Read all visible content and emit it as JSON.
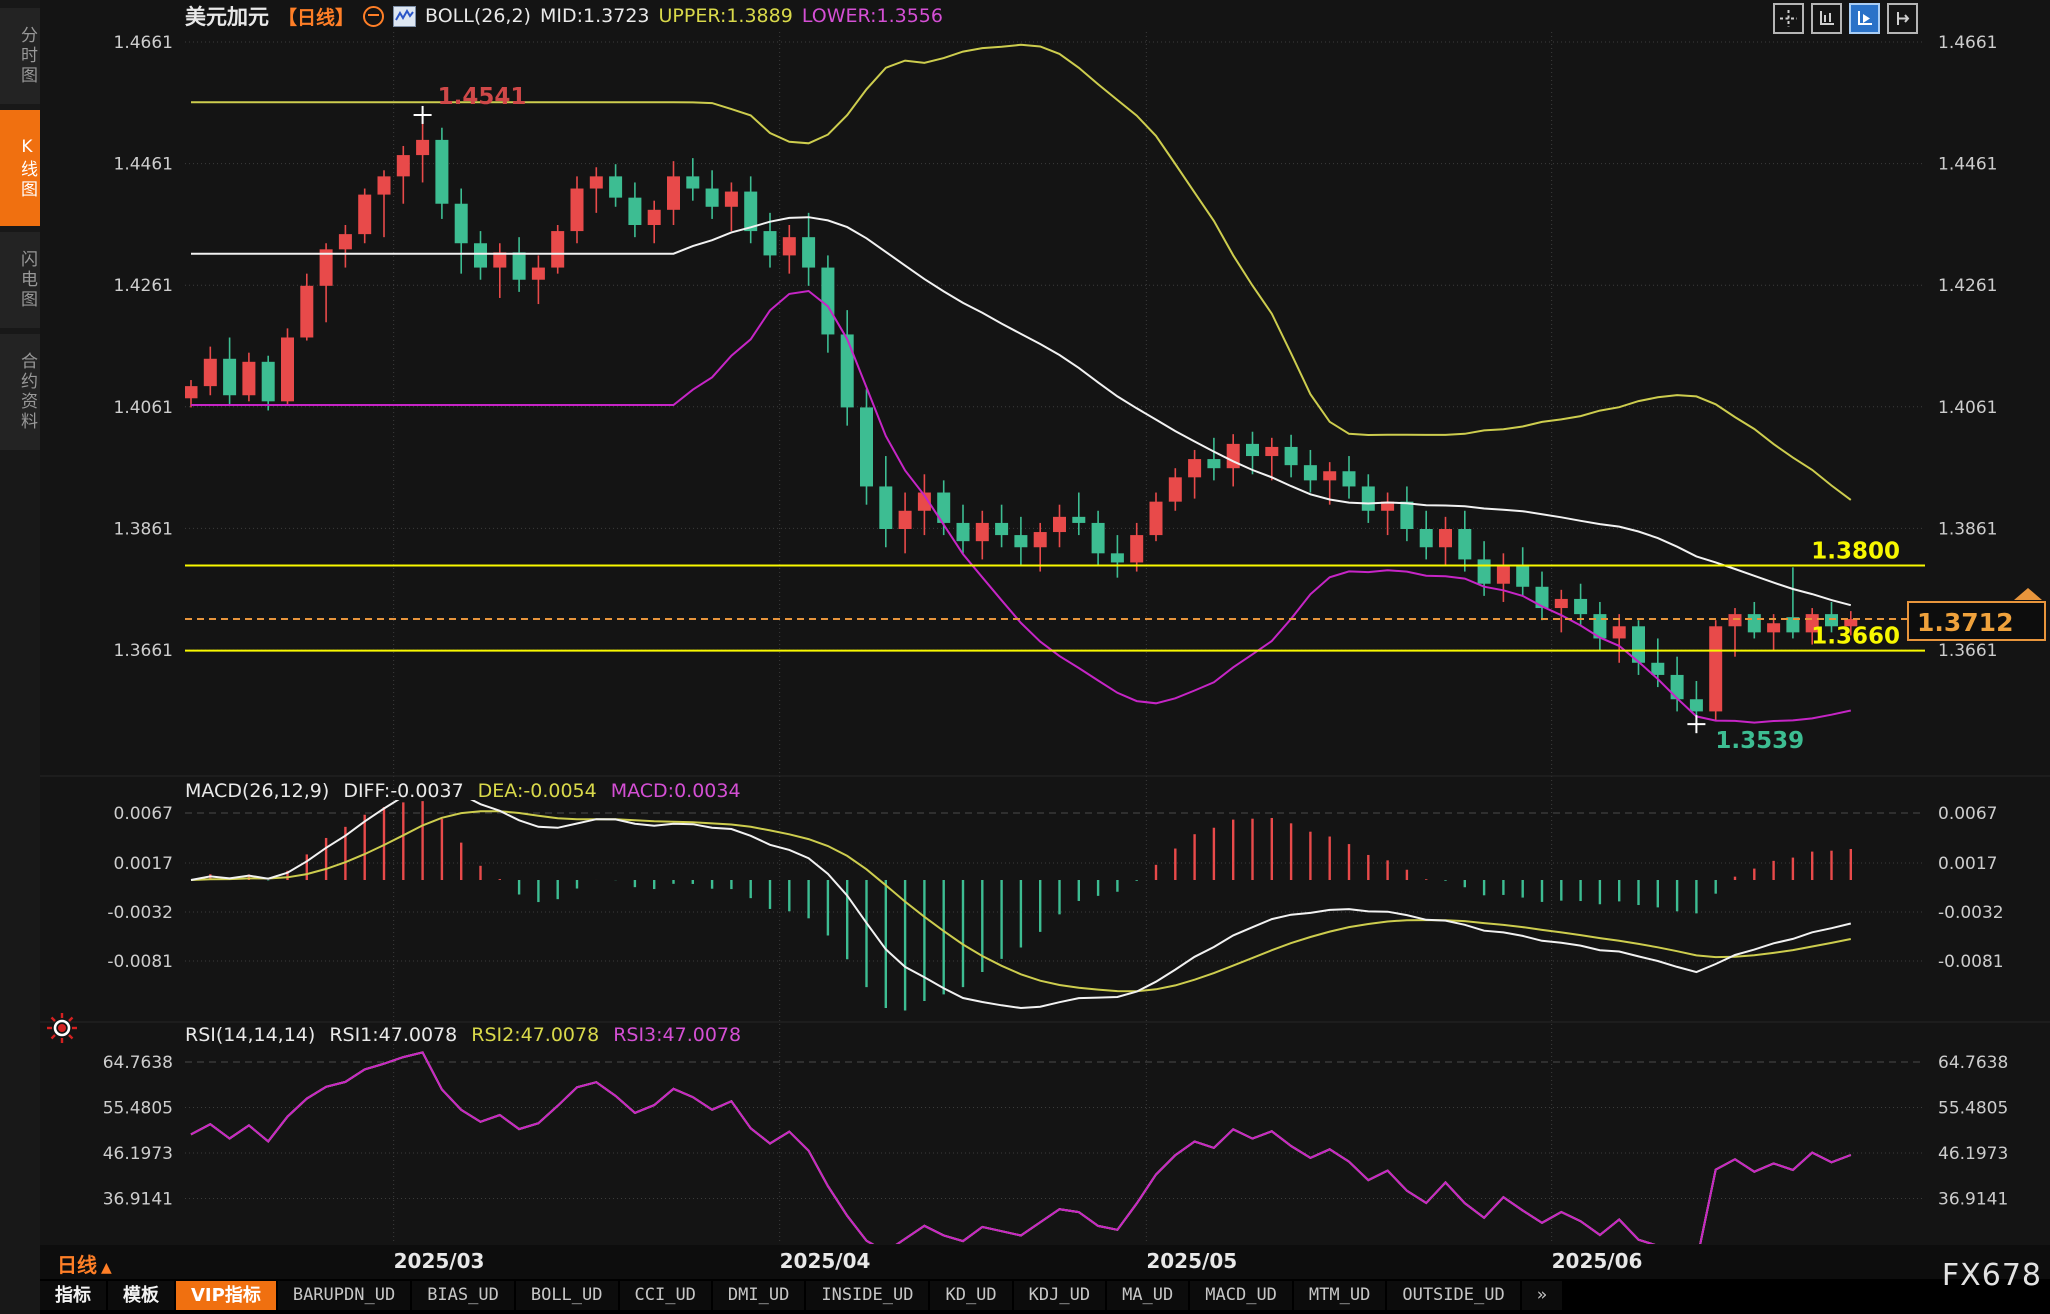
{
  "colors": {
    "up": "#e84a4a",
    "down": "#3dbd92",
    "boll_upper": "#cdcd4e",
    "boll_mid": "#f2f2f2",
    "boll_lower": "#c625c6",
    "macd_diff": "#f2f2f2",
    "macd_dea": "#cdcd4e",
    "rsi_line": "#c625c6",
    "yellow_line": "#f8f800",
    "orange_accent": "#ff7f27",
    "dashed_price": "#e8953c",
    "grid": "#3c3c3c",
    "axis_text": "#cdcdcd",
    "active_tab_bg": "#f07010",
    "active_btn_blue": "#2a72c8",
    "high_label": "#cf4848",
    "low_label": "#3dbd92"
  },
  "icons": {
    "sidebar_burst": "settings-burst-icon",
    "header": [
      "remove-circle-icon",
      "mini-candle-chart-icon"
    ],
    "top_buttons": [
      "crosshair-icon",
      "axis-scale-icon",
      "autoscroll-icon",
      "pan-right-icon"
    ]
  },
  "sidebar": {
    "items": [
      {
        "label": "分时图",
        "active": false
      },
      {
        "label": "K线图",
        "active": true
      },
      {
        "label": "闪电图",
        "active": false
      },
      {
        "label": "合约资料",
        "active": false
      }
    ]
  },
  "header": {
    "symbol": "美元加元",
    "period_tag": "【日线】",
    "boll_title": "BOLL(26,2)",
    "mid_label": "MID:1.3723",
    "upper_label": "UPPER:1.3889",
    "lower_label": "LOWER:1.3556"
  },
  "macd_pane": {
    "title": "MACD(26,12,9)",
    "diff_label": "DIFF:-0.0037",
    "dea_label": "DEA:-0.0054",
    "macd_label": "MACD:0.0034",
    "ticks": [
      {
        "label": "0.0067",
        "value": 0.0067
      },
      {
        "label": "0.0017",
        "value": 0.0017
      },
      {
        "label": "-0.0032",
        "value": -0.0032
      },
      {
        "label": "-0.0081",
        "value": -0.0081
      }
    ]
  },
  "rsi_pane": {
    "title": "RSI(14,14,14)",
    "rsi1_label": "RSI1:47.0078",
    "rsi2_label": "RSI2:47.0078",
    "rsi3_label": "RSI3:47.0078",
    "ticks": [
      {
        "label": "64.7638",
        "value": 64.7638
      },
      {
        "label": "55.4805",
        "value": 55.4805
      },
      {
        "label": "46.1973",
        "value": 46.1973
      },
      {
        "label": "36.9141",
        "value": 36.9141
      }
    ]
  },
  "bottom": {
    "period_label": "日线",
    "period_arrow": "▲",
    "watermark": "FX678",
    "tabs": [
      {
        "label": "指标",
        "cn": true,
        "active": false
      },
      {
        "label": "模板",
        "cn": true,
        "active": false
      },
      {
        "label": "VIP指标",
        "cn": true,
        "active": true
      },
      {
        "label": "BARUPDN_UD"
      },
      {
        "label": "BIAS_UD"
      },
      {
        "label": "BOLL_UD"
      },
      {
        "label": "CCI_UD"
      },
      {
        "label": "DMI_UD"
      },
      {
        "label": "INSIDE_UD"
      },
      {
        "label": "KD_UD"
      },
      {
        "label": "KDJ_UD"
      },
      {
        "label": "MA_UD"
      },
      {
        "label": "MACD_UD"
      },
      {
        "label": "MTM_UD"
      },
      {
        "label": "OUTSIDE_UD"
      },
      {
        "label": "»"
      }
    ]
  },
  "chart_data": {
    "type": "candlestick",
    "symbol": "美元加元 (USD/CAD)",
    "timeframe": "日线 (daily)",
    "price_ticks": [
      {
        "label": "1.4661",
        "value": 1.4661
      },
      {
        "label": "1.4461",
        "value": 1.4461
      },
      {
        "label": "1.4261",
        "value": 1.4261
      },
      {
        "label": "1.4061",
        "value": 1.4061
      },
      {
        "label": "1.3861",
        "value": 1.3861
      },
      {
        "label": "1.3661",
        "value": 1.3661
      }
    ],
    "hlines": [
      {
        "label": "1.3800",
        "value": 1.38
      },
      {
        "label": "1.3660",
        "value": 1.366
      }
    ],
    "current_price": {
      "label": "1.3712",
      "value": 1.3712
    },
    "high_annotation": {
      "label": "1.4541",
      "value": 1.4541,
      "index": 12
    },
    "low_annotation": {
      "label": "1.3539",
      "value": 1.3539,
      "index": 78
    },
    "months": [
      {
        "label": "2025/03",
        "boundary_index": 10.5
      },
      {
        "label": "2025/04",
        "boundary_index": 30.5
      },
      {
        "label": "2025/05",
        "boundary_index": 49.5
      },
      {
        "label": "2025/06",
        "boundary_index": 70.5
      }
    ],
    "indicators": {
      "boll": {
        "period": 26,
        "dev": 2,
        "mid": 1.3723,
        "upper": 1.3889,
        "lower": 1.3556
      },
      "macd": {
        "fast": 12,
        "slow": 26,
        "signal": 9,
        "diff": -0.0037,
        "dea": -0.0054,
        "macd": 0.0034
      },
      "rsi": {
        "periods": [
          14,
          14,
          14
        ],
        "values": [
          47.0078,
          47.0078,
          47.0078
        ]
      }
    },
    "candles": [
      [
        1.4075,
        1.4105,
        1.406,
        1.4095
      ],
      [
        1.4095,
        1.416,
        1.408,
        1.414
      ],
      [
        1.414,
        1.4175,
        1.4065,
        1.408
      ],
      [
        1.408,
        1.415,
        1.407,
        1.4135
      ],
      [
        1.4135,
        1.4145,
        1.4055,
        1.407
      ],
      [
        1.407,
        1.419,
        1.4065,
        1.4175
      ],
      [
        1.4175,
        1.428,
        1.417,
        1.426
      ],
      [
        1.426,
        1.433,
        1.42,
        1.432
      ],
      [
        1.432,
        1.436,
        1.429,
        1.4345
      ],
      [
        1.4345,
        1.442,
        1.433,
        1.441
      ],
      [
        1.441,
        1.445,
        1.434,
        1.444
      ],
      [
        1.444,
        1.449,
        1.4395,
        1.4475
      ],
      [
        1.4475,
        1.4541,
        1.443,
        1.45
      ],
      [
        1.45,
        1.452,
        1.437,
        1.4395
      ],
      [
        1.4395,
        1.442,
        1.428,
        1.433
      ],
      [
        1.433,
        1.435,
        1.427,
        1.429
      ],
      [
        1.429,
        1.433,
        1.424,
        1.4315
      ],
      [
        1.4315,
        1.434,
        1.425,
        1.427
      ],
      [
        1.427,
        1.431,
        1.423,
        1.429
      ],
      [
        1.429,
        1.436,
        1.428,
        1.435
      ],
      [
        1.435,
        1.444,
        1.433,
        1.442
      ],
      [
        1.442,
        1.4455,
        1.438,
        1.444
      ],
      [
        1.444,
        1.446,
        1.439,
        1.4405
      ],
      [
        1.4405,
        1.443,
        1.434,
        1.436
      ],
      [
        1.436,
        1.44,
        1.433,
        1.4385
      ],
      [
        1.4385,
        1.4465,
        1.436,
        1.444
      ],
      [
        1.444,
        1.447,
        1.44,
        1.442
      ],
      [
        1.442,
        1.445,
        1.437,
        1.439
      ],
      [
        1.439,
        1.443,
        1.435,
        1.4415
      ],
      [
        1.4415,
        1.444,
        1.433,
        1.435
      ],
      [
        1.435,
        1.438,
        1.429,
        1.431
      ],
      [
        1.431,
        1.436,
        1.428,
        1.434
      ],
      [
        1.434,
        1.438,
        1.426,
        1.429
      ],
      [
        1.429,
        1.431,
        1.415,
        1.418
      ],
      [
        1.418,
        1.422,
        1.403,
        1.406
      ],
      [
        1.406,
        1.409,
        1.39,
        1.393
      ],
      [
        1.393,
        1.398,
        1.383,
        1.386
      ],
      [
        1.386,
        1.392,
        1.382,
        1.389
      ],
      [
        1.389,
        1.395,
        1.385,
        1.392
      ],
      [
        1.392,
        1.394,
        1.385,
        1.387
      ],
      [
        1.387,
        1.39,
        1.382,
        1.384
      ],
      [
        1.384,
        1.389,
        1.381,
        1.387
      ],
      [
        1.387,
        1.39,
        1.383,
        1.385
      ],
      [
        1.385,
        1.388,
        1.38,
        1.383
      ],
      [
        1.383,
        1.387,
        1.379,
        1.3855
      ],
      [
        1.3855,
        1.39,
        1.383,
        1.388
      ],
      [
        1.388,
        1.392,
        1.385,
        1.387
      ],
      [
        1.387,
        1.389,
        1.38,
        1.382
      ],
      [
        1.382,
        1.385,
        1.378,
        1.3805
      ],
      [
        1.3805,
        1.387,
        1.379,
        1.385
      ],
      [
        1.385,
        1.392,
        1.384,
        1.3905
      ],
      [
        1.3905,
        1.396,
        1.389,
        1.3945
      ],
      [
        1.3945,
        1.399,
        1.391,
        1.3975
      ],
      [
        1.3975,
        1.401,
        1.394,
        1.396
      ],
      [
        1.396,
        1.4016,
        1.393,
        1.4
      ],
      [
        1.4,
        1.402,
        1.395,
        1.398
      ],
      [
        1.398,
        1.401,
        1.394,
        1.3995
      ],
      [
        1.3995,
        1.4015,
        1.3945,
        1.3965
      ],
      [
        1.3965,
        1.399,
        1.392,
        1.394
      ],
      [
        1.394,
        1.397,
        1.39,
        1.3955
      ],
      [
        1.3955,
        1.398,
        1.391,
        1.393
      ],
      [
        1.393,
        1.395,
        1.387,
        1.389
      ],
      [
        1.389,
        1.392,
        1.385,
        1.3905
      ],
      [
        1.3905,
        1.393,
        1.384,
        1.386
      ],
      [
        1.386,
        1.389,
        1.381,
        1.383
      ],
      [
        1.383,
        1.388,
        1.38,
        1.386
      ],
      [
        1.386,
        1.389,
        1.379,
        1.381
      ],
      [
        1.381,
        1.384,
        1.375,
        1.377
      ],
      [
        1.377,
        1.382,
        1.374,
        1.38
      ],
      [
        1.38,
        1.383,
        1.375,
        1.3765
      ],
      [
        1.3765,
        1.379,
        1.371,
        1.373
      ],
      [
        1.373,
        1.376,
        1.369,
        1.3745
      ],
      [
        1.3745,
        1.377,
        1.37,
        1.372
      ],
      [
        1.372,
        1.374,
        1.366,
        1.368
      ],
      [
        1.368,
        1.372,
        1.364,
        1.37
      ],
      [
        1.37,
        1.371,
        1.362,
        1.364
      ],
      [
        1.364,
        1.368,
        1.36,
        1.362
      ],
      [
        1.362,
        1.365,
        1.356,
        1.358
      ],
      [
        1.358,
        1.361,
        1.3539,
        1.356
      ],
      [
        1.356,
        1.371,
        1.3545,
        1.37
      ],
      [
        1.37,
        1.373,
        1.365,
        1.372
      ],
      [
        1.372,
        1.374,
        1.368,
        1.369
      ],
      [
        1.369,
        1.372,
        1.366,
        1.3705
      ],
      [
        1.3715,
        1.3797,
        1.368,
        1.369
      ],
      [
        1.369,
        1.373,
        1.367,
        1.372
      ],
      [
        1.372,
        1.374,
        1.369,
        1.37
      ],
      [
        1.37,
        1.3725,
        1.3685,
        1.3712
      ]
    ]
  }
}
